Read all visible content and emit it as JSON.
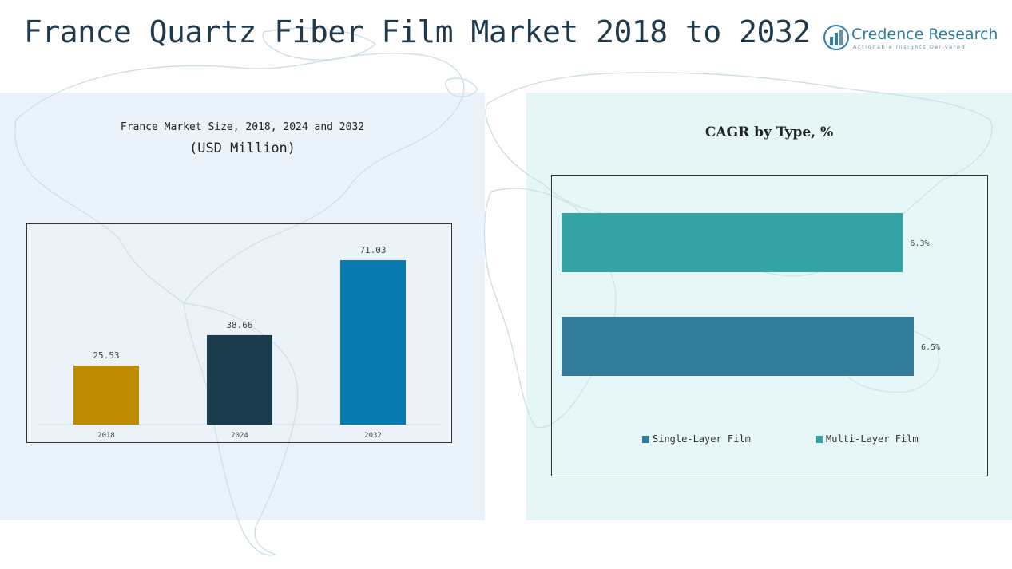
{
  "page": {
    "title": "France Quartz Fiber Film Market 2018 to 2032"
  },
  "logo": {
    "name": "Credence Research",
    "tagline": "Actionable Insights Delivered",
    "icon": "bar-chart-circle-logo"
  },
  "colors": {
    "title": "#1f3a4d",
    "bar_2018": "#bf8c00",
    "bar_2024": "#1a3c4c",
    "bar_2032": "#0a7bb0",
    "single_layer": "#327b9b",
    "multi_layer": "#35a3a3"
  },
  "chart_data": [
    {
      "type": "bar",
      "title": "France Market Size, 2018, 2024 and 2032",
      "subtitle": "(USD Million)",
      "categories": [
        "2018",
        "2024",
        "2032"
      ],
      "values": [
        25.53,
        38.66,
        71.03
      ],
      "labels": [
        "25.53",
        "38.66",
        "71.03"
      ],
      "xlabel": "",
      "ylabel": "USD Million",
      "ylim": [
        0,
        80
      ],
      "grid": false,
      "legend": "none"
    },
    {
      "type": "bar",
      "orientation": "horizontal",
      "title": "CAGR by Type, %",
      "series": [
        {
          "name": "Multi-Layer Film",
          "value": 6.3,
          "label": "6.3%"
        },
        {
          "name": "Single-Layer Film",
          "value": 6.5,
          "label": "6.5%"
        }
      ],
      "legend_order": [
        "Single-Layer Film",
        "Multi-Layer Film"
      ],
      "xlim": [
        0,
        6.5
      ],
      "grid": false,
      "legend": "bottom"
    }
  ]
}
